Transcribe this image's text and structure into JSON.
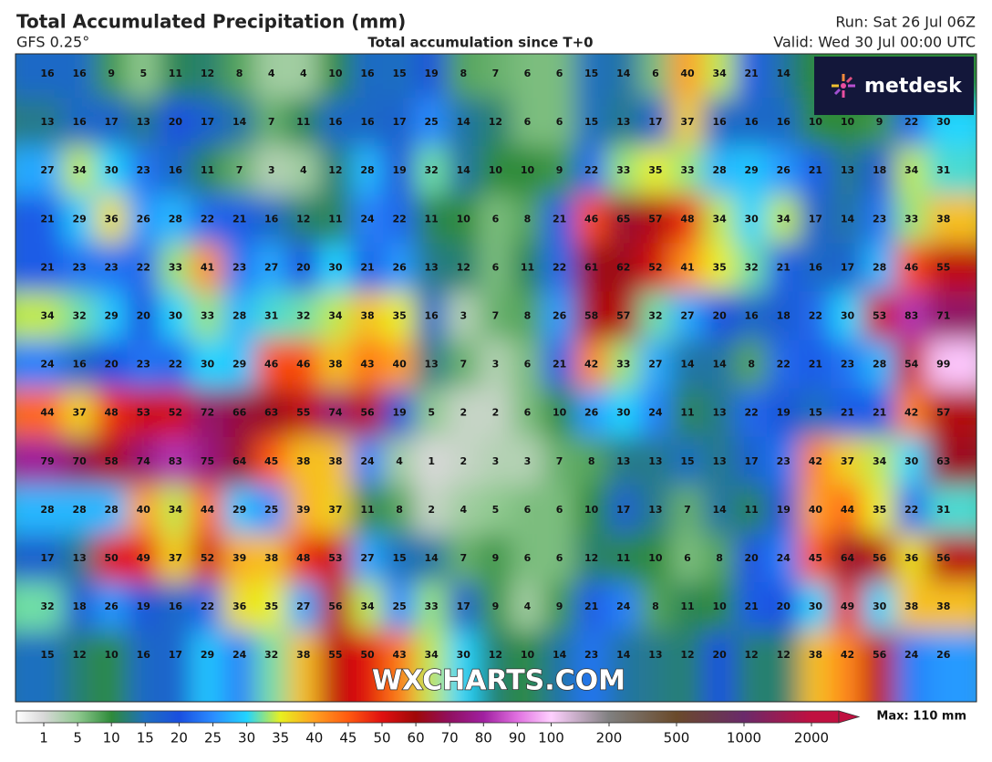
{
  "header": {
    "title": "Total Accumulated Precipitation (mm)",
    "model": "GFS 0.25°",
    "subtitle": "Total accumulation since T+0",
    "run": "Run: Sat 26 Jul 06Z",
    "valid": "Valid: Wed 30 Jul 00:00 UTC"
  },
  "logo": "metdesk",
  "watermark": "WXCHARTS.COM",
  "map": {
    "grid": [
      [
        16,
        16,
        9,
        5,
        11,
        12,
        8,
        4,
        4,
        10,
        16,
        15,
        19,
        8,
        7,
        6,
        6,
        15,
        14,
        6,
        40,
        34,
        21,
        14,
        null,
        null,
        null,
        null,
        null
      ],
      [
        13,
        16,
        17,
        13,
        20,
        17,
        14,
        7,
        11,
        16,
        16,
        17,
        25,
        14,
        12,
        6,
        6,
        15,
        13,
        17,
        37,
        16,
        16,
        16,
        10,
        10,
        9,
        22,
        30
      ],
      [
        27,
        34,
        30,
        23,
        16,
        11,
        7,
        3,
        4,
        12,
        28,
        19,
        32,
        14,
        10,
        10,
        9,
        22,
        33,
        35,
        33,
        28,
        29,
        26,
        21,
        13,
        18,
        34,
        31
      ],
      [
        21,
        29,
        36,
        26,
        28,
        22,
        21,
        16,
        12,
        11,
        24,
        22,
        11,
        10,
        6,
        8,
        21,
        46,
        65,
        57,
        48,
        34,
        30,
        34,
        17,
        14,
        23,
        33,
        38
      ],
      [
        21,
        23,
        23,
        22,
        33,
        41,
        23,
        27,
        20,
        30,
        21,
        26,
        13,
        12,
        6,
        11,
        22,
        61,
        62,
        52,
        41,
        35,
        32,
        21,
        16,
        17,
        28,
        46,
        55
      ],
      [
        34,
        32,
        29,
        20,
        30,
        33,
        28,
        31,
        32,
        34,
        38,
        35,
        16,
        3,
        7,
        8,
        26,
        58,
        57,
        32,
        27,
        20,
        16,
        18,
        22,
        30,
        53,
        83,
        71
      ],
      [
        24,
        16,
        20,
        23,
        22,
        30,
        29,
        46,
        46,
        38,
        43,
        40,
        13,
        7,
        3,
        6,
        21,
        42,
        33,
        27,
        14,
        14,
        8,
        22,
        21,
        23,
        28,
        54,
        99
      ],
      [
        44,
        37,
        48,
        53,
        52,
        72,
        66,
        63,
        55,
        74,
        56,
        19,
        5,
        2,
        2,
        6,
        10,
        26,
        30,
        24,
        11,
        13,
        22,
        19,
        15,
        21,
        21,
        42,
        57
      ],
      [
        79,
        70,
        58,
        74,
        83,
        75,
        64,
        45,
        38,
        38,
        24,
        4,
        1,
        2,
        3,
        3,
        7,
        8,
        13,
        13,
        15,
        13,
        17,
        23,
        42,
        37,
        34,
        30,
        63
      ],
      [
        28,
        28,
        28,
        40,
        34,
        44,
        29,
        25,
        39,
        37,
        11,
        8,
        2,
        4,
        5,
        6,
        6,
        10,
        17,
        13,
        7,
        14,
        11,
        19,
        40,
        44,
        35,
        22,
        31
      ],
      [
        17,
        13,
        50,
        49,
        37,
        52,
        39,
        38,
        48,
        53,
        27,
        15,
        14,
        7,
        9,
        6,
        6,
        12,
        11,
        10,
        6,
        8,
        20,
        24,
        45,
        64,
        56,
        36,
        56
      ],
      [
        32,
        18,
        26,
        19,
        16,
        22,
        36,
        35,
        27,
        56,
        34,
        25,
        33,
        17,
        9,
        4,
        9,
        21,
        24,
        8,
        11,
        10,
        21,
        20,
        30,
        49,
        30,
        38,
        38
      ],
      [
        15,
        12,
        10,
        16,
        17,
        29,
        24,
        32,
        38,
        55,
        50,
        43,
        34,
        30,
        12,
        10,
        14,
        23,
        14,
        13,
        12,
        20,
        12,
        12,
        38,
        42,
        56,
        24,
        26
      ]
    ]
  },
  "colorbar": {
    "ticks": [
      1,
      5,
      10,
      15,
      20,
      25,
      30,
      35,
      40,
      45,
      50,
      60,
      70,
      80,
      90,
      100,
      200,
      500,
      1000,
      2000
    ],
    "colors": [
      "#d8d8d8",
      "#8fc98f",
      "#2e8b3a",
      "#1f6fbf",
      "#1a4fe0",
      "#2a8cff",
      "#22d4ff",
      "#e8f020",
      "#ffa020",
      "#ff5a10",
      "#e01010",
      "#a00808",
      "#901060",
      "#a020a0",
      "#e070e0",
      "#ffd0ff",
      "#808080",
      "#6a4a2a",
      "#6a2a6a",
      "#c01040"
    ],
    "max_label": "Max: 110 mm"
  }
}
